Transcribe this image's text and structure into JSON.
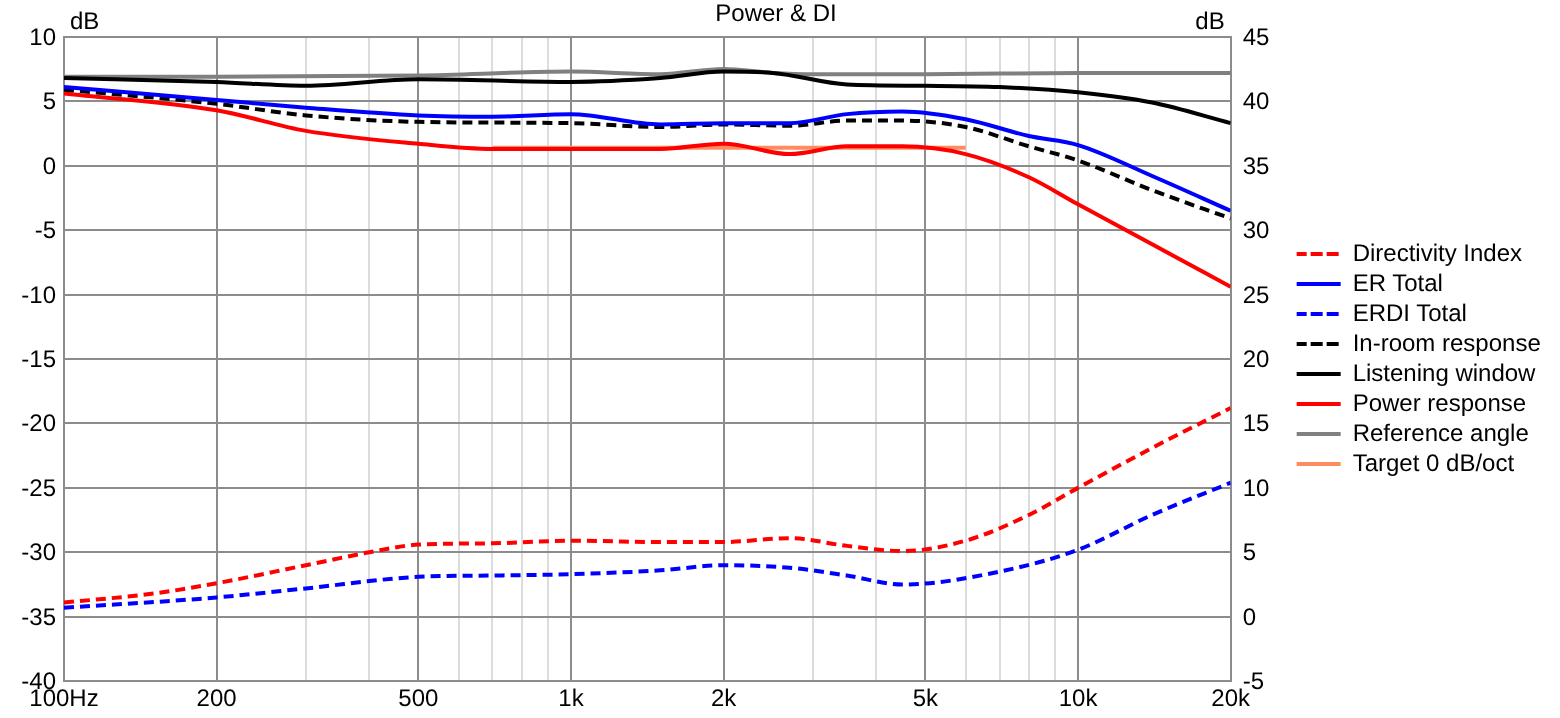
{
  "chart_data": {
    "type": "line",
    "title": "Power & DI",
    "ylabel": "dB",
    "y2label": "dB",
    "log": "x",
    "grid": true,
    "legend": "right",
    "marker": "none",
    "xlim": [
      100,
      20000
    ],
    "xticks": [
      {
        "value": 100,
        "label": "100Hz"
      },
      200,
      {
        "value": 300,
        "label": null
      },
      {
        "value": 400,
        "label": null
      },
      500,
      {
        "value": 600,
        "label": null
      },
      {
        "value": 700,
        "label": null
      },
      {
        "value": 800,
        "label": null
      },
      {
        "value": 900,
        "label": null
      },
      {
        "value": 1000,
        "label": "1k"
      },
      {
        "value": 2000,
        "label": "2k"
      },
      {
        "value": 3000,
        "label": null
      },
      {
        "value": 4000,
        "label": null
      },
      {
        "value": 5000,
        "label": "5k"
      },
      {
        "value": 6000,
        "label": null
      },
      {
        "value": 7000,
        "label": null
      },
      {
        "value": 8000,
        "label": null
      },
      {
        "value": 9000,
        "label": null
      },
      {
        "value": 10000,
        "label": "10k"
      },
      {
        "value": 20000,
        "label": "20k"
      }
    ],
    "ylim": [
      -40,
      10
    ],
    "yticks": [
      -40,
      -35,
      -30,
      -25,
      -20,
      -15,
      -10,
      -5,
      0,
      5,
      10
    ],
    "y2lim": [
      -5,
      45
    ],
    "y2ticks": [
      -5,
      0,
      5,
      10,
      15,
      20,
      25,
      30,
      35,
      40,
      45
    ],
    "series": [
      {
        "name": "Directivity Index",
        "color": "#ff0000",
        "line_style": "dashed",
        "axis": "y2",
        "x": [
          100,
          150,
          200,
          300,
          400,
          500,
          700,
          1000,
          1500,
          2000,
          2700,
          3500,
          4500,
          6000,
          8000,
          10000,
          14000,
          20000
        ],
        "values": [
          1.1,
          1.8,
          2.6,
          4.0,
          5.0,
          5.6,
          5.7,
          5.9,
          5.8,
          5.8,
          6.1,
          5.5,
          5.1,
          5.9,
          7.9,
          10.0,
          13.1,
          16.2
        ]
      },
      {
        "name": "ER Total",
        "color": "#0000ff",
        "line_style": "solid",
        "x": [
          100,
          200,
          300,
          500,
          700,
          1000,
          1500,
          2000,
          2700,
          3500,
          4500,
          6000,
          8000,
          10000,
          14000,
          20000
        ],
        "values": [
          6.1,
          5.1,
          4.5,
          3.9,
          3.8,
          4.0,
          3.2,
          3.3,
          3.3,
          4.0,
          4.2,
          3.6,
          2.3,
          1.6,
          -0.8,
          -3.5
        ]
      },
      {
        "name": "ERDI Total",
        "color": "#0000ff",
        "line_style": "dashed",
        "axis": "y2",
        "x": [
          100,
          200,
          300,
          500,
          700,
          1000,
          1500,
          2000,
          2700,
          3500,
          4500,
          7000,
          10000,
          14000,
          20000
        ],
        "values": [
          0.7,
          1.5,
          2.2,
          3.1,
          3.2,
          3.3,
          3.6,
          4.0,
          3.8,
          3.2,
          2.5,
          3.5,
          5.2,
          7.9,
          10.4
        ]
      },
      {
        "name": "In-room response",
        "color": "#000000",
        "line_style": "dashed",
        "x": [
          100,
          200,
          300,
          500,
          1000,
          1500,
          2000,
          2700,
          3500,
          4500,
          6000,
          8000,
          10000,
          14000,
          20000
        ],
        "values": [
          5.9,
          4.8,
          3.9,
          3.4,
          3.3,
          3.0,
          3.2,
          3.1,
          3.5,
          3.5,
          3.0,
          1.5,
          0.4,
          -1.9,
          -4.1
        ]
      },
      {
        "name": "Listening window",
        "color": "#000000",
        "line_style": "solid",
        "x": [
          100,
          200,
          300,
          500,
          1000,
          1500,
          2000,
          2500,
          3500,
          5000,
          7000,
          10000,
          14000,
          20000
        ],
        "values": [
          6.8,
          6.5,
          6.2,
          6.7,
          6.5,
          6.8,
          7.3,
          7.2,
          6.3,
          6.2,
          6.1,
          5.7,
          4.9,
          3.3
        ]
      },
      {
        "name": "Power response",
        "color": "#ff0000",
        "line_style": "solid",
        "x": [
          100,
          200,
          300,
          500,
          700,
          1000,
          1500,
          2000,
          2700,
          3500,
          4500,
          6000,
          8000,
          10000,
          14000,
          20000
        ],
        "values": [
          5.6,
          4.3,
          2.7,
          1.7,
          1.3,
          1.3,
          1.3,
          1.7,
          0.9,
          1.5,
          1.5,
          0.9,
          -0.9,
          -3.0,
          -6.1,
          -9.4
        ]
      },
      {
        "name": "Reference angle",
        "color": "#808080",
        "line_style": "solid",
        "x": [
          100,
          200,
          500,
          1000,
          1500,
          2000,
          2500,
          3000,
          5000,
          10000,
          20000
        ],
        "values": [
          6.9,
          6.9,
          7.0,
          7.3,
          7.1,
          7.5,
          7.2,
          7.1,
          7.1,
          7.2,
          7.2
        ]
      },
      {
        "name": "Target 0 dB/oct",
        "color": "#ff8c60",
        "line_style": "solid",
        "x": [
          700,
          6000
        ],
        "values": [
          1.4,
          1.4
        ]
      }
    ]
  }
}
